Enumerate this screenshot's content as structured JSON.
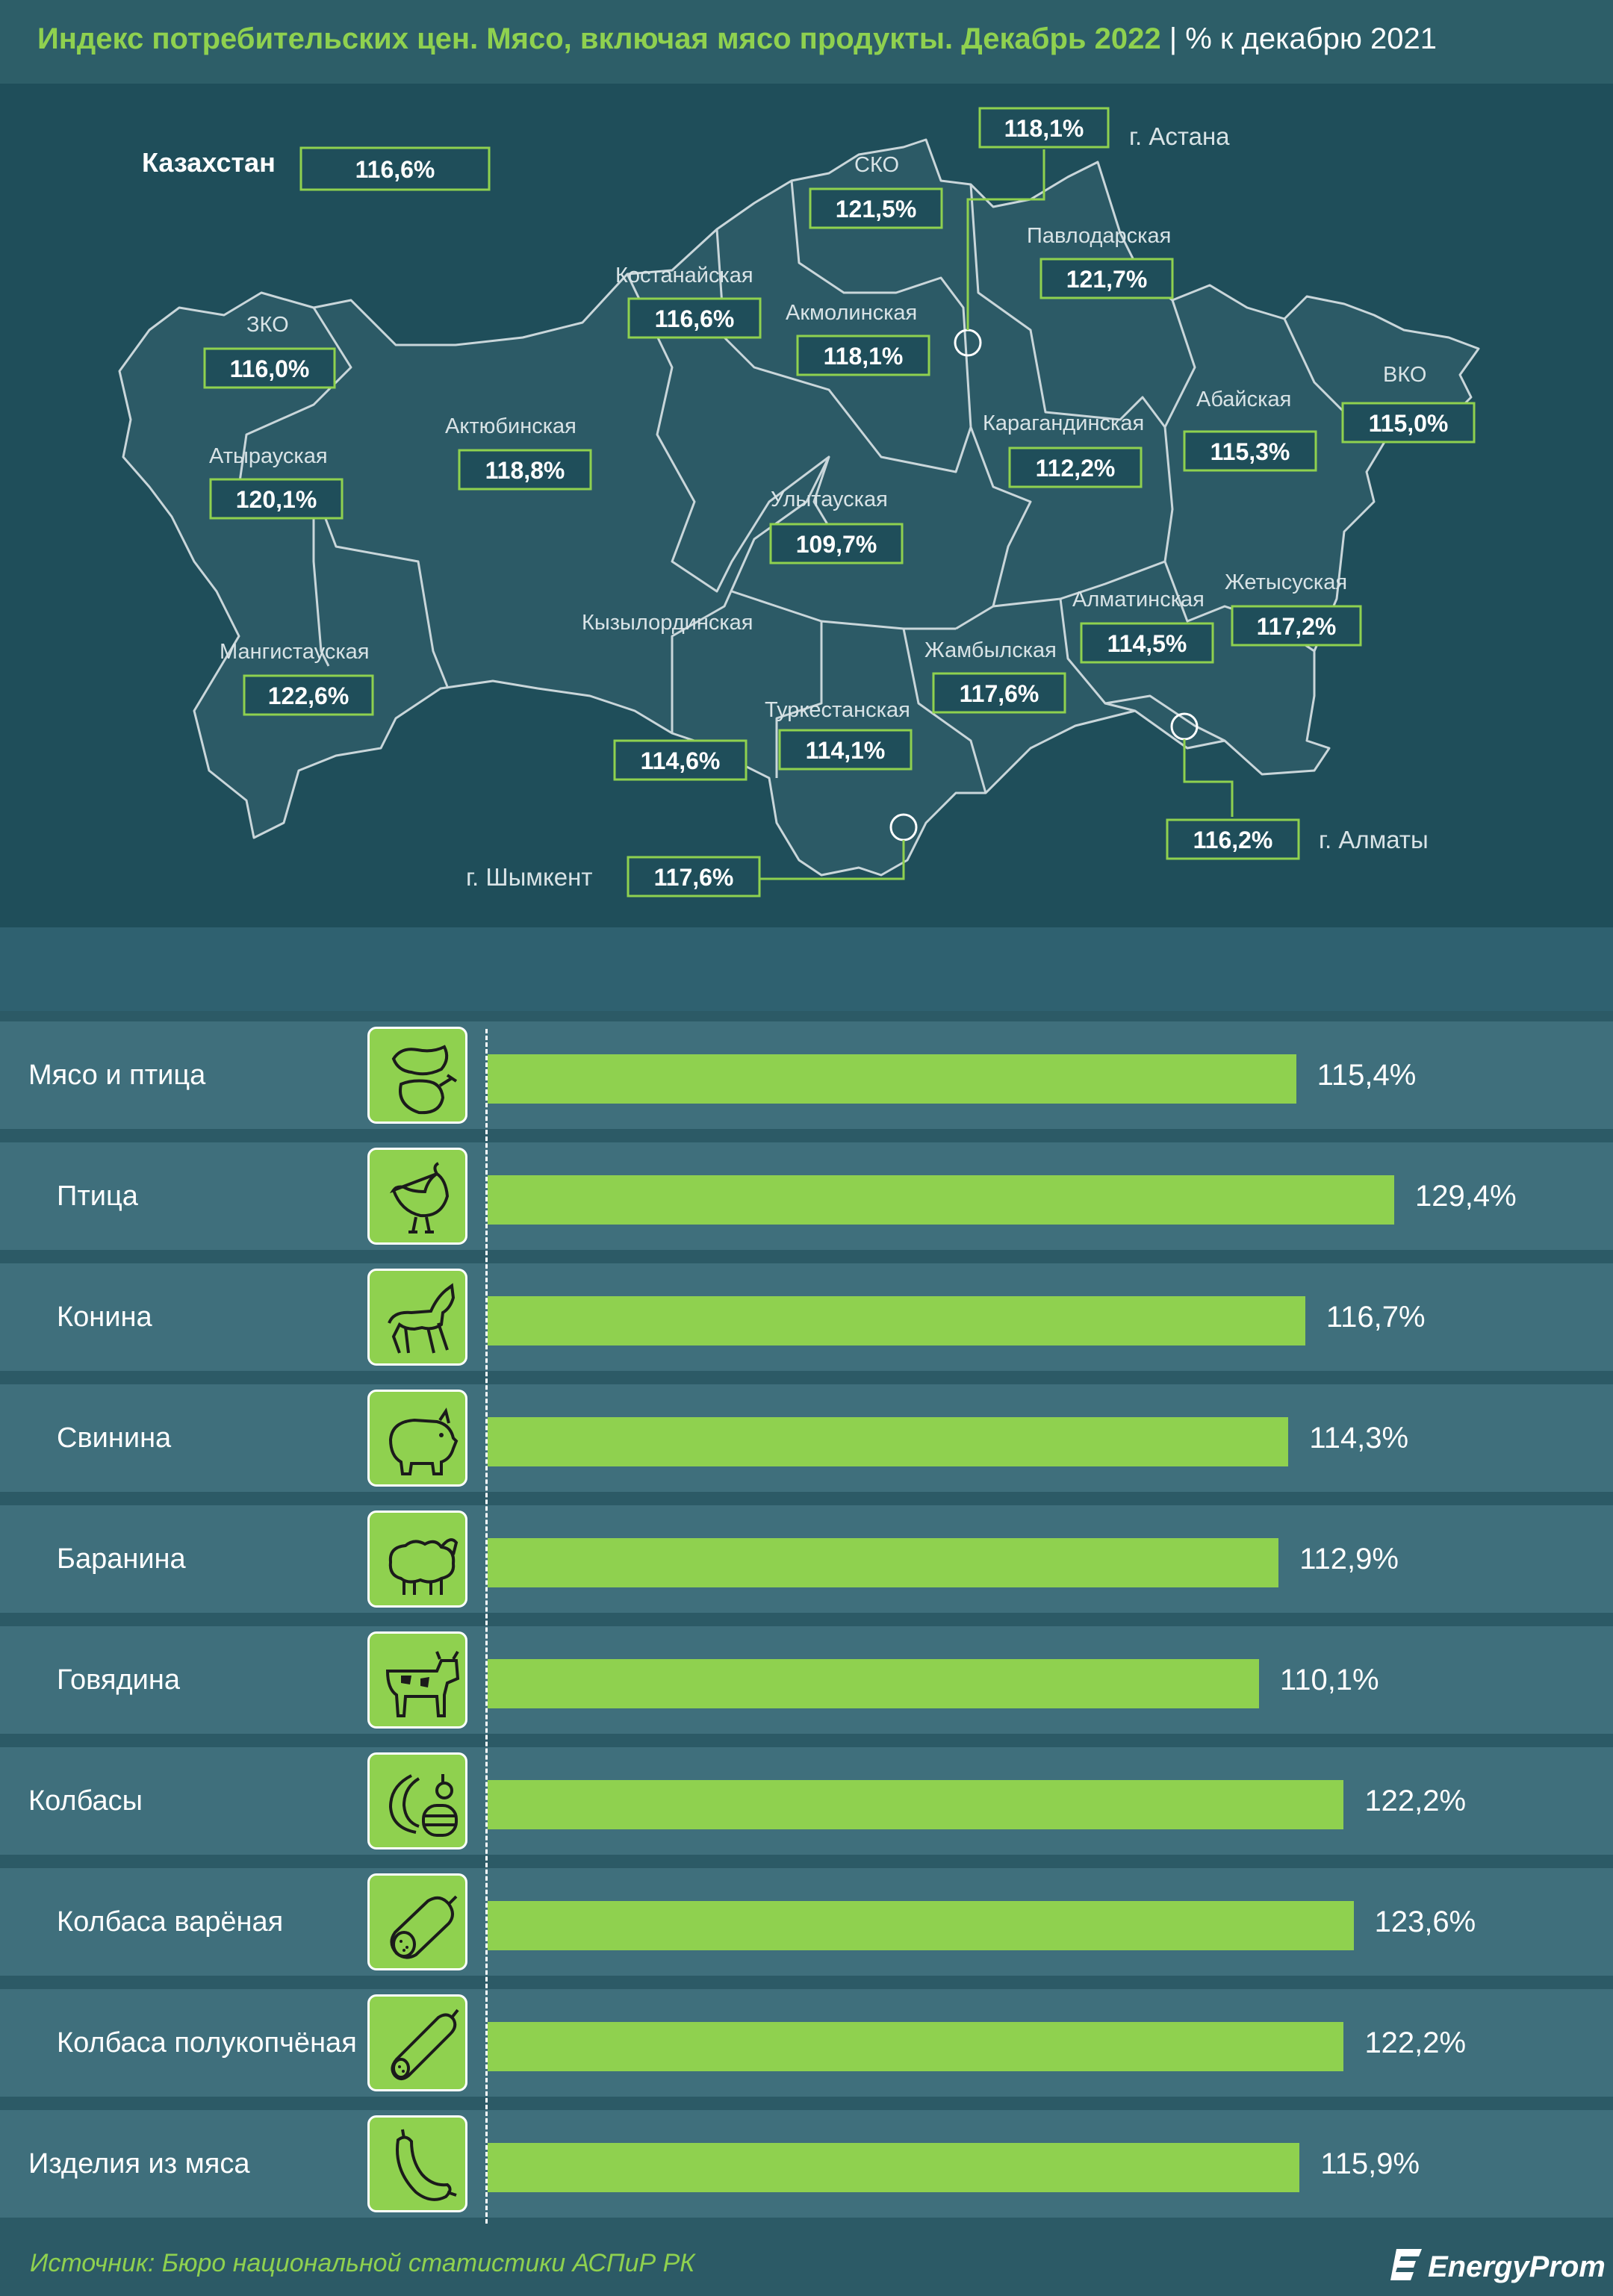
{
  "title": {
    "main": "Индекс потребительских цен. Мясо, включая мясо продукты. Декабрь 2022",
    "sep": " | ",
    "unit": "% к декабрю 2021"
  },
  "map": {
    "country": {
      "name": "Казахстан",
      "value": "116,6%"
    },
    "regions": [
      {
        "name": "ЗКО",
        "value": "116,0%"
      },
      {
        "name": "Атырауская",
        "value": "120,1%"
      },
      {
        "name": "Мангистауская",
        "value": "122,6%"
      },
      {
        "name": "Актюбинская",
        "value": "118,8%"
      },
      {
        "name": "Костанайская",
        "value": "116,6%"
      },
      {
        "name": "СКО",
        "value": "121,5%"
      },
      {
        "name": "Акмолинская",
        "value": "118,1%"
      },
      {
        "name": "Павлодарская",
        "value": "121,7%"
      },
      {
        "name": "Карагандинская",
        "value": "112,2%"
      },
      {
        "name": "Улытауская",
        "value": "109,7%"
      },
      {
        "name": "Кызылординская",
        "value": "114,6%"
      },
      {
        "name": "Туркестанская",
        "value": "114,1%"
      },
      {
        "name": "Жамбылская",
        "value": "117,6%"
      },
      {
        "name": "Алматинская",
        "value": "114,5%"
      },
      {
        "name": "Жетысуская",
        "value": "117,2%"
      },
      {
        "name": "Абайская",
        "value": "115,3%"
      },
      {
        "name": "ВКО",
        "value": "115,0%"
      }
    ],
    "cities": [
      {
        "name": "г. Астана",
        "value": "118,1%"
      },
      {
        "name": "г. Алматы",
        "value": "116,2%"
      },
      {
        "name": "г. Шымкент",
        "value": "117,6%"
      }
    ]
  },
  "chart_data": {
    "type": "bar",
    "orientation": "horizontal",
    "unit": "% к декабрю 2021",
    "categories": [
      "Мясо и птица",
      "Птица",
      "Конина",
      "Свинина",
      "Баранина",
      "Говядина",
      "Колбасы",
      "Колбаса варёная",
      "Колбаса полукопчёная",
      "Изделия из мяса"
    ],
    "values": [
      115.4,
      129.4,
      116.7,
      114.3,
      112.9,
      110.1,
      122.2,
      123.6,
      122.2,
      115.9
    ],
    "value_labels": [
      "115,4%",
      "129,4%",
      "116,7%",
      "114,3%",
      "112,9%",
      "110,1%",
      "122,2%",
      "123,6%",
      "122,2%",
      "115,9%"
    ],
    "indent": [
      false,
      true,
      true,
      true,
      true,
      true,
      false,
      true,
      true,
      false
    ],
    "icons": [
      "meat-poultry-icon",
      "chicken-icon",
      "horse-icon",
      "pig-icon",
      "sheep-icon",
      "cow-icon",
      "sausages-icon",
      "boiled-sausage-icon",
      "smoked-sausage-icon",
      "meat-products-icon"
    ],
    "bar_color": "#8fd14f"
  },
  "source": "Источник: Бюро национальной статистики АСПиР РК",
  "logo": "EnergyProm",
  "colors": {
    "accent": "#8fd14f",
    "background": "#2c5a66",
    "map_panel": "#1f4e5a",
    "row": "#3f6f7c"
  }
}
